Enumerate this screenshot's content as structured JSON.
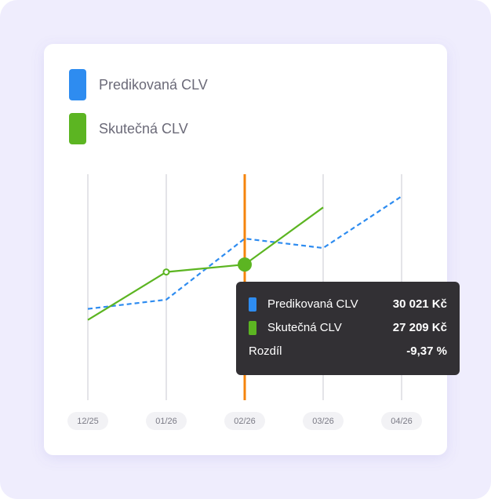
{
  "chart_data": {
    "type": "line",
    "x": [
      "12/25",
      "01/26",
      "02/26",
      "03/26",
      "04/26"
    ],
    "series": [
      {
        "name": "Predikovaná CLV",
        "color": "#2e8cf0",
        "dashed": true,
        "values": [
          22400,
          23400,
          30021,
          29000,
          34600
        ],
        "value_labels": [
          null,
          null,
          "30 021 Kč",
          null,
          null
        ]
      },
      {
        "name": "Skutečná CLV",
        "color": "#5cb522",
        "dashed": false,
        "values": [
          21200,
          26400,
          27209,
          33400,
          null
        ],
        "value_labels": [
          null,
          null,
          "27 209 Kč",
          null,
          null
        ]
      }
    ],
    "ylim": [
      12500,
      37000
    ],
    "highlight_color": "#f5840c",
    "tooltip": {
      "label": "Rozdíl",
      "value": "-9,37 %"
    }
  }
}
